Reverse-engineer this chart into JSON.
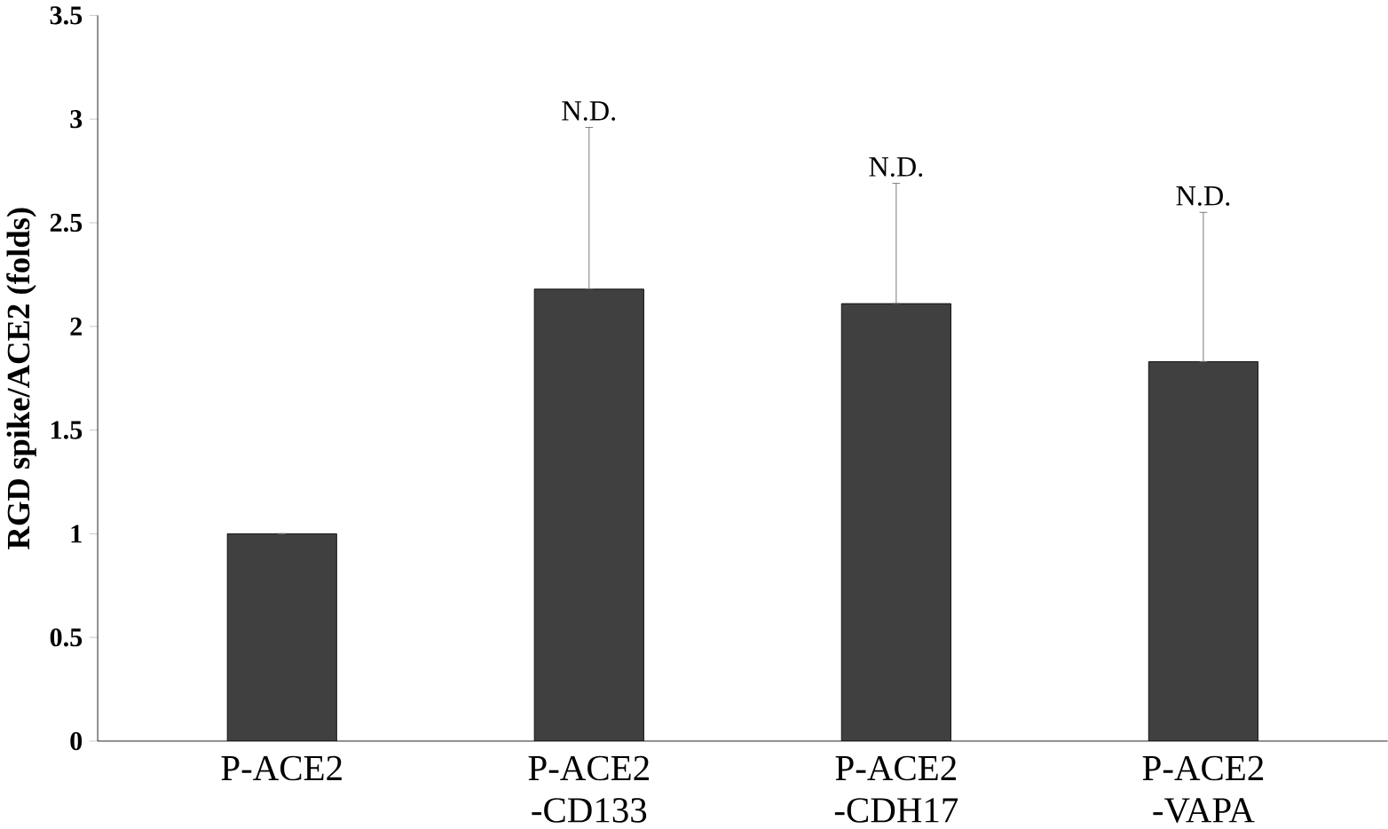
{
  "chart_data": {
    "type": "bar",
    "ylabel": "**RGD spike/ACE2 (folds)**",
    "categories": [
      "P-ACE2",
      "P-ACE2 -CD133",
      "P-ACE2 -CDH17",
      "P-ACE2 -VAPA"
    ],
    "values": [
      1.0,
      2.18,
      2.11,
      1.83
    ],
    "errors": [
      null,
      [
        2.18,
        2.96
      ],
      [
        2.11,
        2.69
      ],
      [
        1.83,
        2.55
      ]
    ],
    "color": "#404040",
    "ylim": [
      0,
      3.5
    ],
    "yticks": [
      0,
      0.5,
      1,
      1.5,
      2,
      2.5,
      3,
      3.5
    ],
    "grid": false,
    "annotations": [
      {
        "text": "N.D.",
        "x": "P-ACE2 -CD133",
        "y": 2.96
      },
      {
        "text": "N.D.",
        "x": "P-ACE2 -CDH17",
        "y": 2.69
      },
      {
        "text": "N.D.",
        "x": "P-ACE2 -VAPA",
        "y": 2.55
      }
    ]
  }
}
